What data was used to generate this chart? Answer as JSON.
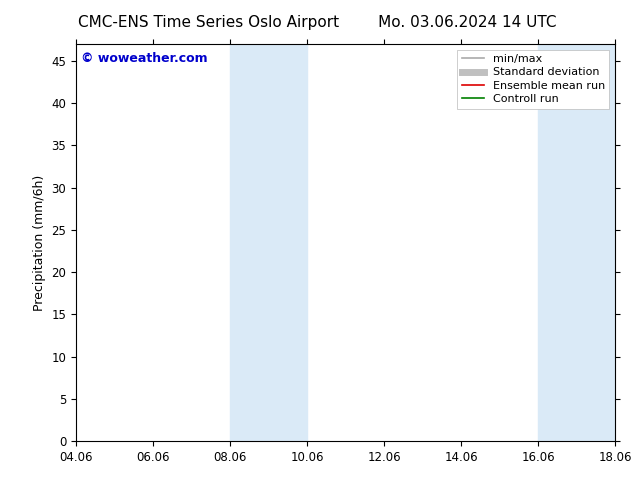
{
  "title_left": "CMC-ENS Time Series Oslo Airport",
  "title_right": "Mo. 03.06.2024 14 UTC",
  "ylabel": "Precipitation (mm/6h)",
  "xlabel": "",
  "background_color": "#ffffff",
  "plot_bg_color": "#ffffff",
  "x_ticks": [
    "04.06",
    "06.06",
    "08.06",
    "10.06",
    "12.06",
    "14.06",
    "16.06",
    "18.06"
  ],
  "x_tick_positions": [
    0,
    2,
    4,
    6,
    8,
    10,
    12,
    14
  ],
  "y_ticks": [
    0,
    5,
    10,
    15,
    20,
    25,
    30,
    35,
    40,
    45
  ],
  "ylim": [
    0,
    47
  ],
  "xlim": [
    0,
    14
  ],
  "shaded_regions": [
    {
      "x_start": 4.0,
      "x_end": 6.0,
      "color": "#daeaf7"
    },
    {
      "x_start": 12.0,
      "x_end": 14.0,
      "color": "#daeaf7"
    }
  ],
  "legend_entries": [
    {
      "label": "min/max",
      "color": "#aaaaaa",
      "lw": 1.2
    },
    {
      "label": "Standard deviation",
      "color": "#c0c0c0",
      "lw": 5
    },
    {
      "label": "Ensemble mean run",
      "color": "#dd0000",
      "lw": 1.2
    },
    {
      "label": "Controll run",
      "color": "#008000",
      "lw": 1.2
    }
  ],
  "watermark_text": "© woweather.com",
  "watermark_color": "#0000cc",
  "title_fontsize": 11,
  "axis_label_fontsize": 9,
  "tick_fontsize": 8.5,
  "legend_fontsize": 8
}
